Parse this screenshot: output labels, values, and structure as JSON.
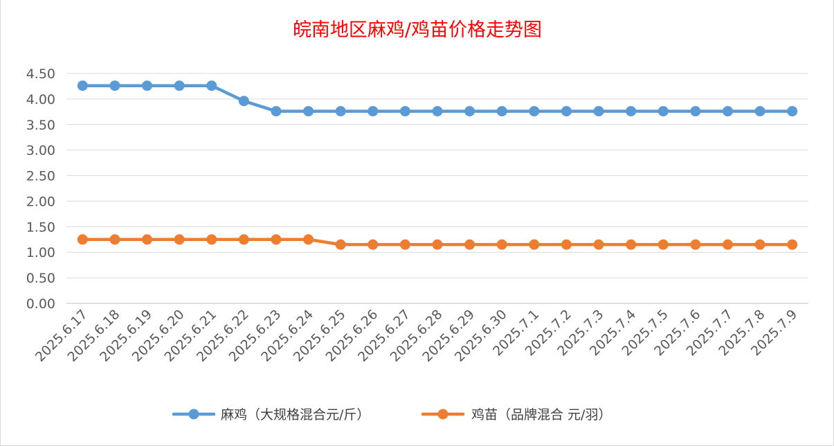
{
  "chart_data": {
    "type": "line",
    "title": "皖南地区麻鸡/鸡苗价格走势图",
    "xlabel": "",
    "ylabel": "",
    "categories": [
      "2025.6.17",
      "2025.6.18",
      "2025.6.19",
      "2025.6.20",
      "2025.6.21",
      "2025.6.22",
      "2025.6.23",
      "2025.6.24",
      "2025.6.25",
      "2025.6.26",
      "2025.6.27",
      "2025.6.28",
      "2025.6.29",
      "2025.6.30",
      "2025.7.1",
      "2025.7.2",
      "2025.7.3",
      "2025.7.4",
      "2025.7.5",
      "2025.7.6",
      "2025.7.7",
      "2025.7.8",
      "2025.7.9"
    ],
    "ylim": [
      0,
      4.5
    ],
    "yticks": [
      "0.00",
      "0.50",
      "1.00",
      "1.50",
      "2.00",
      "2.50",
      "3.00",
      "3.50",
      "4.00",
      "4.50"
    ],
    "grid": true,
    "legend_position": "bottom",
    "series": [
      {
        "name": "麻鸡（大规格混合元/斤）",
        "color": "#5b9bd5",
        "values": [
          4.26,
          4.26,
          4.26,
          4.26,
          4.26,
          3.96,
          3.76,
          3.76,
          3.76,
          3.76,
          3.76,
          3.76,
          3.76,
          3.76,
          3.76,
          3.76,
          3.76,
          3.76,
          3.76,
          3.76,
          3.76,
          3.76,
          3.76
        ]
      },
      {
        "name": "鸡苗（品牌混合 元/羽）",
        "color": "#ed7d31",
        "values": [
          1.25,
          1.25,
          1.25,
          1.25,
          1.25,
          1.25,
          1.25,
          1.25,
          1.15,
          1.15,
          1.15,
          1.15,
          1.15,
          1.15,
          1.15,
          1.15,
          1.15,
          1.15,
          1.15,
          1.15,
          1.15,
          1.15,
          1.15
        ]
      }
    ]
  }
}
